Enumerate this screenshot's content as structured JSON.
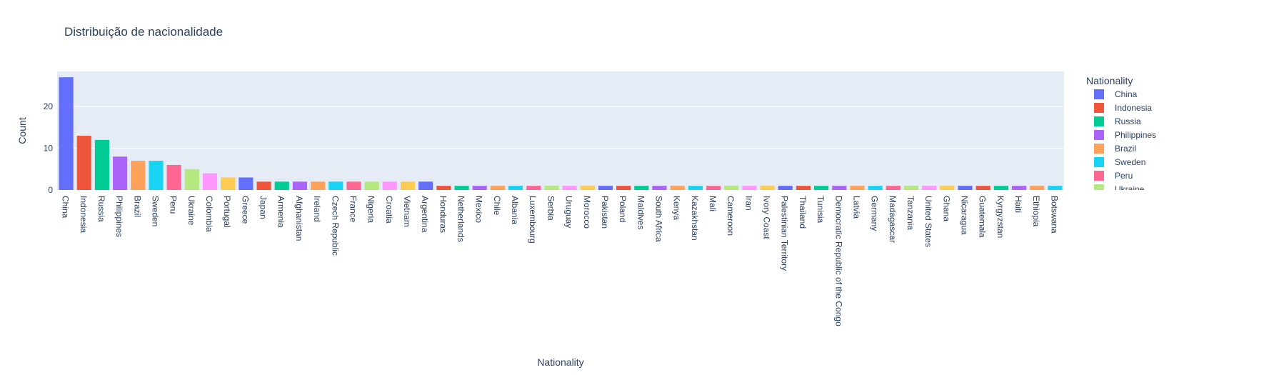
{
  "chart_data": {
    "type": "bar",
    "title": "Distribuição de nacionalidade",
    "xlabel": "Nationality",
    "ylabel": "Count",
    "ylim": [
      0,
      28.4
    ],
    "yticks": [
      0,
      10,
      20
    ],
    "grid": true,
    "legend": {
      "title": "Nationality",
      "placement": "right",
      "visible_entries": [
        "China",
        "Indonesia",
        "Russia",
        "Philippines",
        "Brazil",
        "Sweden",
        "Peru",
        "Ukraine"
      ]
    },
    "palette": [
      "#636efa",
      "#EF553B",
      "#00cc96",
      "#ab63fa",
      "#FFA15A",
      "#19d3f3",
      "#FF6692",
      "#B6E880",
      "#FF97FF",
      "#FECB52"
    ],
    "plot_bg": "#e5ecf6",
    "categories": [
      "China",
      "Indonesia",
      "Russia",
      "Philippines",
      "Brazil",
      "Sweden",
      "Peru",
      "Ukraine",
      "Colombia",
      "Portugal",
      "Greece",
      "Japan",
      "Armenia",
      "Afghanistan",
      "Ireland",
      "Czech Republic",
      "France",
      "Nigeria",
      "Croatia",
      "Vietnam",
      "Argentina",
      "Honduras",
      "Netherlands",
      "Mexico",
      "Chile",
      "Albania",
      "Luxembourg",
      "Serbia",
      "Uruguay",
      "Morocco",
      "Pakistan",
      "Poland",
      "Maldives",
      "South Africa",
      "Kenya",
      "Kazakhstan",
      "Mali",
      "Cameroon",
      "Iran",
      "Ivory Coast",
      "Palestinian Territory",
      "Thailand",
      "Tunisia",
      "Democratic Republic of the Congo",
      "Latvia",
      "Germany",
      "Madagascar",
      "Tanzania",
      "United States",
      "Ghana",
      "Nicaragua",
      "Guatemala",
      "Kyrgyzstan",
      "Haiti",
      "Ethiopia",
      "Botswana"
    ],
    "values": [
      27,
      13,
      12,
      8,
      7,
      7,
      6,
      5,
      4,
      3,
      3,
      2,
      2,
      2,
      2,
      2,
      2,
      2,
      2,
      2,
      2,
      1,
      1,
      1,
      1,
      1,
      1,
      1,
      1,
      1,
      1,
      1,
      1,
      1,
      1,
      1,
      1,
      1,
      1,
      1,
      1,
      1,
      1,
      1,
      1,
      1,
      1,
      1,
      1,
      1,
      1,
      1,
      1,
      1,
      1,
      1
    ]
  }
}
